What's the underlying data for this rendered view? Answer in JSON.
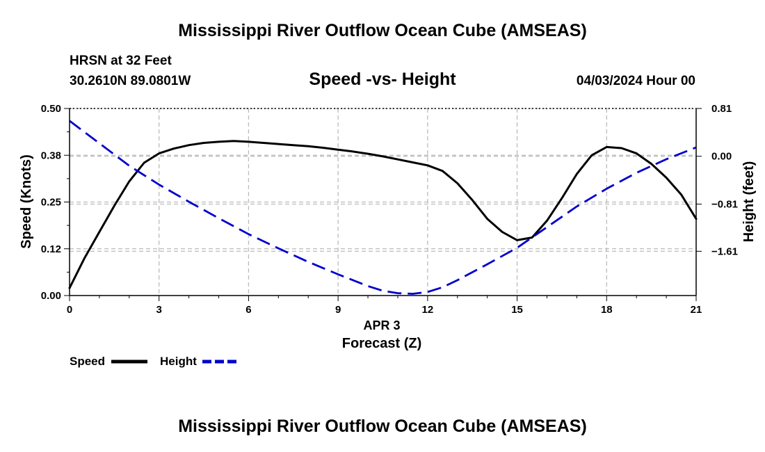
{
  "header": {
    "title": "Mississippi River Outflow Ocean Cube (AMSEAS)",
    "station": "HRSN at 32 Feet",
    "coords": "30.2610N  89.0801W",
    "subtitle": "Speed -vs- Height",
    "datetime": "04/03/2024 Hour 00"
  },
  "footer": {
    "title": "Mississippi River Outflow Ocean Cube (AMSEAS)"
  },
  "chart_data": {
    "type": "line",
    "title": "Speed -vs- Height",
    "xlabel": "Forecast (Z)",
    "xlabel_top": "APR 3",
    "ylabel": "Speed (Knots)",
    "y2label": "Height (feet)",
    "xlim": [
      0,
      21
    ],
    "ylim": [
      0,
      0.5
    ],
    "y2lim": [
      -2.36,
      0.81
    ],
    "x_ticks": [
      0,
      3,
      6,
      9,
      12,
      15,
      18,
      21
    ],
    "x_tick_labels": [
      "0",
      "3",
      "6",
      "9",
      "12",
      "15",
      "18",
      "21"
    ],
    "y_ticks": [
      0,
      0.125,
      0.25,
      0.375,
      0.5
    ],
    "y_tick_labels": [
      "0.00",
      "0.12",
      "0.25",
      "0.38",
      "0.50"
    ],
    "y2_ticks": [
      -1.61,
      -0.81,
      0.0,
      0.81
    ],
    "y2_tick_labels": [
      "−1.61",
      "−0.81",
      "0.00",
      "0.81"
    ],
    "grid": true,
    "legend_position": "bottom-left",
    "colors": {
      "speed": "#000000",
      "height": "#0000cc",
      "grid": "#bbbbbb"
    },
    "series": [
      {
        "name": "Speed",
        "axis": "left",
        "style": "solid",
        "x": [
          0,
          0.5,
          1,
          1.5,
          2,
          2.5,
          3,
          3.5,
          4,
          4.5,
          5,
          5.5,
          6,
          6.5,
          7,
          7.5,
          8,
          8.5,
          9,
          9.5,
          10,
          10.5,
          11,
          11.5,
          12,
          12.5,
          13,
          13.5,
          14,
          14.5,
          15,
          15.5,
          16,
          16.5,
          17,
          17.5,
          18,
          18.5,
          19,
          19.5,
          20,
          20.5,
          21
        ],
        "values": [
          0.02,
          0.1,
          0.17,
          0.24,
          0.305,
          0.355,
          0.38,
          0.393,
          0.402,
          0.408,
          0.411,
          0.413,
          0.411,
          0.408,
          0.405,
          0.402,
          0.399,
          0.395,
          0.39,
          0.385,
          0.379,
          0.372,
          0.364,
          0.356,
          0.348,
          0.333,
          0.3,
          0.255,
          0.205,
          0.17,
          0.148,
          0.155,
          0.2,
          0.26,
          0.325,
          0.375,
          0.397,
          0.394,
          0.38,
          0.352,
          0.315,
          0.27,
          0.205
        ]
      },
      {
        "name": "Height",
        "axis": "right",
        "style": "dashed",
        "x": [
          0,
          1,
          2,
          3,
          4,
          5,
          6,
          7,
          8,
          9,
          10,
          10.5,
          11,
          11.5,
          12,
          12.5,
          13,
          14,
          15,
          16,
          17,
          18,
          19,
          20,
          21
        ],
        "values": [
          0.6,
          0.22,
          -0.16,
          -0.48,
          -0.77,
          -1.05,
          -1.32,
          -1.56,
          -1.79,
          -2.0,
          -2.2,
          -2.28,
          -2.32,
          -2.33,
          -2.3,
          -2.22,
          -2.1,
          -1.83,
          -1.55,
          -1.2,
          -0.85,
          -0.55,
          -0.28,
          -0.05,
          0.15
        ]
      }
    ]
  }
}
